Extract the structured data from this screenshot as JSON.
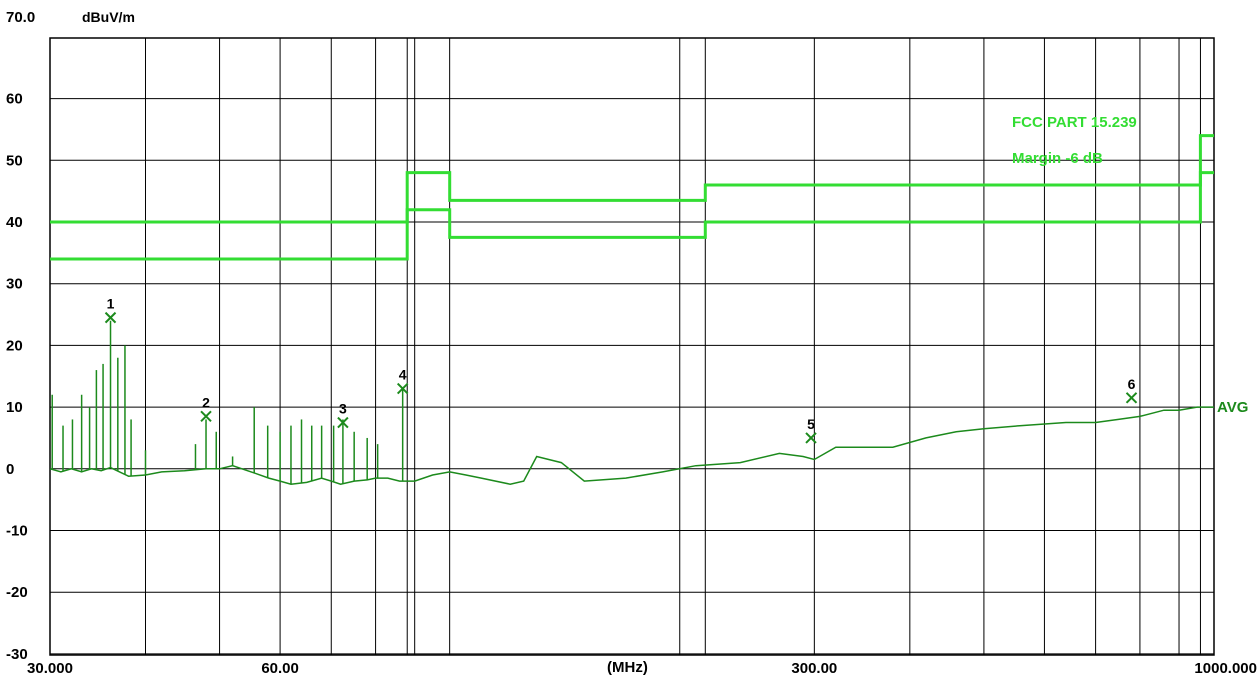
{
  "chart_data": {
    "type": "line",
    "y_unit": "dBuV/m",
    "x_unit": "(MHz)",
    "x_scale": "log",
    "xlim": [
      30,
      1000
    ],
    "ylim": [
      -35,
      70
    ],
    "y_tick_labels": [
      {
        "value": 70,
        "label": "70.0"
      },
      {
        "value": 60,
        "label": "60"
      },
      {
        "value": 50,
        "label": "50"
      },
      {
        "value": 40,
        "label": "40"
      },
      {
        "value": 30,
        "label": "30"
      },
      {
        "value": 20,
        "label": "20"
      },
      {
        "value": 10,
        "label": "10"
      },
      {
        "value": 0,
        "label": "0"
      },
      {
        "value": -10,
        "label": "-10"
      },
      {
        "value": -20,
        "label": "-20"
      },
      {
        "value": -30,
        "label": "-30"
      }
    ],
    "x_tick_labels": [
      {
        "value": 30,
        "label": "30.000"
      },
      {
        "value": 60,
        "label": "60.00"
      },
      {
        "value": 300,
        "label": "300.00"
      },
      {
        "value": 1000,
        "label": "1000.000"
      }
    ],
    "x_gridlines": [
      40,
      50,
      60,
      70,
      80,
      88,
      90,
      100,
      200,
      216,
      300,
      400,
      500,
      600,
      700,
      800,
      900,
      960
    ],
    "y_gridlines": [
      60,
      50,
      40,
      30,
      20,
      10,
      0,
      -10,
      -20,
      -30
    ],
    "grid": true,
    "annotations": {
      "limit_name": "FCC PART 15.239",
      "margin_name": "Margin -6 dB",
      "trace_name": "AVG"
    },
    "limit_line": {
      "name": "FCC PART 15.239",
      "x": [
        30,
        88,
        88,
        100,
        100,
        216,
        216,
        960,
        960,
        1000
      ],
      "y": [
        40,
        40,
        48,
        48,
        43.5,
        43.5,
        46,
        46,
        54,
        54
      ]
    },
    "margin_line": {
      "name": "Margin -6 dB",
      "x": [
        30,
        88,
        88,
        100,
        100,
        216,
        216,
        960,
        960,
        1000
      ],
      "y": [
        34,
        34,
        42,
        42,
        37.5,
        37.5,
        40,
        40,
        48,
        48
      ]
    },
    "trace": {
      "name": "AVG",
      "x": [
        30,
        31,
        32,
        33,
        34,
        35,
        36,
        37,
        38,
        40,
        42,
        45,
        48,
        50,
        52,
        55,
        58,
        60,
        62,
        65,
        68,
        70,
        72,
        75,
        78,
        80,
        83,
        86,
        88,
        90,
        95,
        100,
        105,
        110,
        120,
        125,
        130,
        140,
        150,
        170,
        190,
        210,
        240,
        270,
        290,
        300,
        320,
        350,
        380,
        420,
        460,
        500,
        560,
        640,
        700,
        750,
        800,
        860,
        900,
        950,
        1000
      ],
      "y": [
        0,
        -0.5,
        0,
        -0.5,
        0,
        -0.3,
        0.2,
        -0.5,
        -1.2,
        -1,
        -0.5,
        -0.3,
        0,
        0,
        0.5,
        -0.5,
        -1.5,
        -2,
        -2.5,
        -2.2,
        -1.5,
        -2,
        -2.5,
        -2,
        -1.8,
        -1.5,
        -1.5,
        -2,
        -2,
        -2,
        -1,
        -0.5,
        -1,
        -1.5,
        -2.5,
        -2,
        2,
        1,
        -2,
        -1.5,
        -0.5,
        0.5,
        1,
        2.5,
        2,
        1.5,
        3.5,
        3.5,
        3.5,
        5,
        6,
        6.5,
        7,
        7.5,
        7.5,
        8,
        8.5,
        9.5,
        9.5,
        10,
        10
      ]
    },
    "spikes": [
      {
        "x": 30.2,
        "y": 12
      },
      {
        "x": 31.2,
        "y": 7
      },
      {
        "x": 32.1,
        "y": 8
      },
      {
        "x": 33.0,
        "y": 12
      },
      {
        "x": 33.8,
        "y": 10
      },
      {
        "x": 34.5,
        "y": 16
      },
      {
        "x": 35.2,
        "y": 17
      },
      {
        "x": 36.0,
        "y": 24
      },
      {
        "x": 36.8,
        "y": 18
      },
      {
        "x": 37.6,
        "y": 20
      },
      {
        "x": 38.3,
        "y": 8
      },
      {
        "x": 40.0,
        "y": 3
      },
      {
        "x": 46.5,
        "y": 4
      },
      {
        "x": 48.0,
        "y": 8
      },
      {
        "x": 49.5,
        "y": 6
      },
      {
        "x": 52.0,
        "y": 2
      },
      {
        "x": 55.5,
        "y": 10
      },
      {
        "x": 57.8,
        "y": 7
      },
      {
        "x": 60.0,
        "y": 6
      },
      {
        "x": 62.0,
        "y": 7
      },
      {
        "x": 64.0,
        "y": 8
      },
      {
        "x": 66.0,
        "y": 7
      },
      {
        "x": 68.0,
        "y": 7
      },
      {
        "x": 70.5,
        "y": 7
      },
      {
        "x": 72.5,
        "y": 8
      },
      {
        "x": 75.0,
        "y": 6
      },
      {
        "x": 78.0,
        "y": 5
      },
      {
        "x": 80.5,
        "y": 4
      },
      {
        "x": 86.8,
        "y": 13
      }
    ],
    "markers": [
      {
        "label": "1",
        "x": 36.0,
        "y": 24.5
      },
      {
        "label": "2",
        "x": 48.0,
        "y": 8.5
      },
      {
        "label": "3",
        "x": 72.5,
        "y": 7.5
      },
      {
        "label": "4",
        "x": 86.8,
        "y": 13.0
      },
      {
        "label": "5",
        "x": 297,
        "y": 5.0
      },
      {
        "label": "6",
        "x": 780,
        "y": 11.5
      }
    ],
    "colors": {
      "limit": "#33dd33",
      "trace": "#1c8a1c",
      "marker": "#1c8a1c",
      "grid": "#000000"
    }
  }
}
